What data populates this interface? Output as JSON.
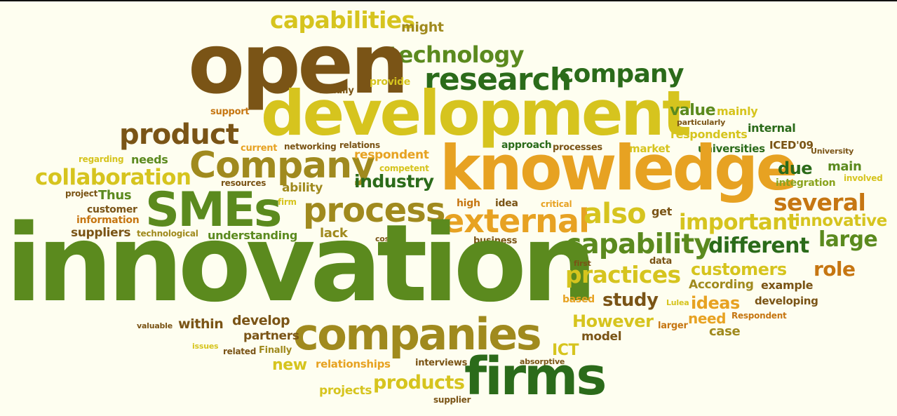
{
  "words": [
    "capabilities",
    "might",
    "technology",
    "open",
    "research",
    "company",
    "provide",
    "usually",
    "development",
    "support",
    "value",
    "mainly",
    "particularly",
    "respondents",
    "internal",
    "product",
    "regarding",
    "current",
    "networking",
    "relations",
    "approach",
    "processes",
    "market",
    "universities",
    "ICED'09",
    "University",
    "Company",
    "respondent",
    "competent",
    "knowledge",
    "needs",
    "collaboration",
    "due",
    "main",
    "involved",
    "integration",
    "resources",
    "ability",
    "industry",
    "project",
    "Thus",
    "SMEs",
    "process",
    "several",
    "customer",
    "firm",
    "high",
    "idea",
    "critical",
    "get",
    "information",
    "external",
    "also",
    "important",
    "innovative",
    "suppliers",
    "technological",
    "understanding",
    "lack",
    "cost",
    "large",
    "business",
    "capability",
    "different",
    "innovation",
    "first",
    "data",
    "practices",
    "customers",
    "role",
    "According",
    "example",
    "based",
    "study",
    "Lulea",
    "ideas",
    "developing",
    "within",
    "develop",
    "However",
    "larger",
    "Respondent",
    "valuable",
    "need",
    "case",
    "companies",
    "partners",
    "model",
    "issues",
    "related",
    "Finally",
    "ICT",
    "new",
    "relationships",
    "interviews",
    "absorptive",
    "projects",
    "products",
    "firms",
    "supplier"
  ]
}
